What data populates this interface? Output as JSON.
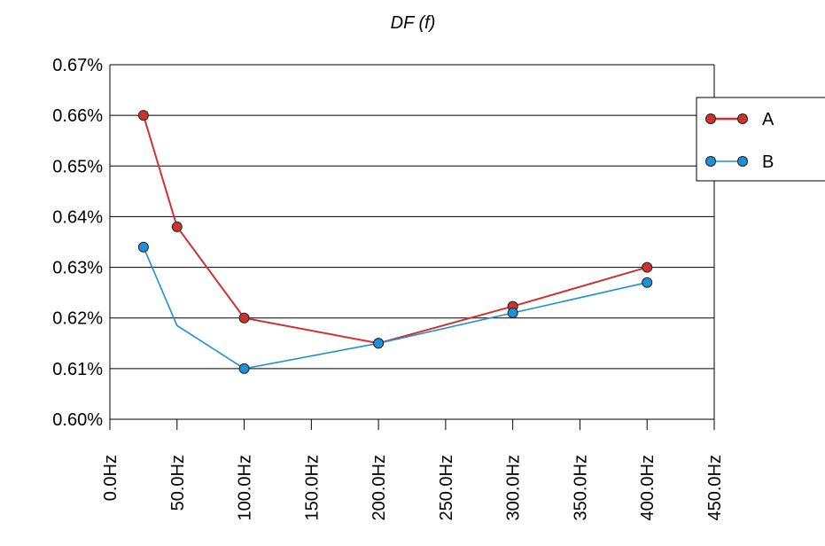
{
  "chart_data": {
    "type": "line",
    "title": "DF (f)",
    "xlabel": "",
    "ylabel": "",
    "xlim": [
      0,
      450
    ],
    "ylim": [
      0.6,
      0.67
    ],
    "x_ticks": [
      0,
      50,
      100,
      150,
      200,
      250,
      300,
      350,
      400,
      450
    ],
    "x_tick_labels": [
      "0.0Hz",
      "50.0Hz",
      "100.0Hz",
      "150.0Hz",
      "200.0Hz",
      "250.0Hz",
      "300.0Hz",
      "350.0Hz",
      "400.0Hz",
      "450.0Hz"
    ],
    "y_ticks": [
      0.6,
      0.61,
      0.62,
      0.63,
      0.64,
      0.65,
      0.66,
      0.67
    ],
    "y_tick_labels": [
      "0.60%",
      "0.61%",
      "0.62%",
      "0.63%",
      "0.64%",
      "0.65%",
      "0.66%",
      "0.67%"
    ],
    "grid": "horizontal",
    "legend_position": "right",
    "series": [
      {
        "name": "A",
        "color": "#d0312d",
        "points": [
          [
            25,
            0.66
          ],
          [
            50,
            0.638
          ],
          [
            100,
            0.62
          ],
          [
            200,
            0.615
          ],
          [
            300,
            0.6223
          ],
          [
            400,
            0.63
          ]
        ],
        "markers": [
          true,
          true,
          true,
          true,
          true,
          true
        ]
      },
      {
        "name": "B",
        "color": "#1e90d6",
        "points": [
          [
            25,
            0.634
          ],
          [
            50,
            0.6185
          ],
          [
            100,
            0.61
          ],
          [
            200,
            0.615
          ],
          [
            300,
            0.621
          ],
          [
            400,
            0.627
          ]
        ],
        "markers": [
          true,
          false,
          true,
          true,
          true,
          true
        ]
      }
    ]
  }
}
